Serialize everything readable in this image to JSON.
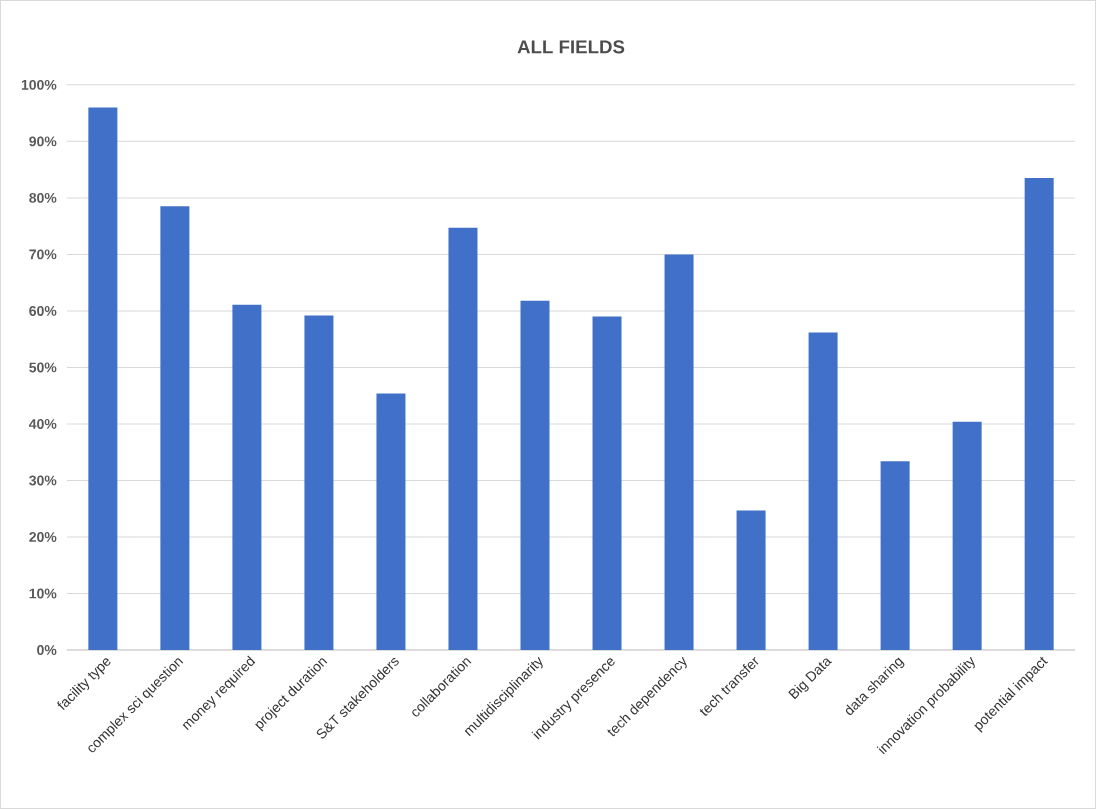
{
  "chart_data": {
    "type": "bar",
    "title": "ALL FIELDS",
    "categories": [
      "facility type",
      "complex sci question",
      "money required",
      "project duration",
      "S&T stakeholders",
      "collaboration",
      "multidisciplinarity",
      "industry presence",
      "tech dependency",
      "tech transfer",
      "Big Data",
      "data sharing",
      "innovation probability",
      "potential impact"
    ],
    "values": [
      96.0,
      78.5,
      61.1,
      59.2,
      45.4,
      74.7,
      61.8,
      59.0,
      70.0,
      24.7,
      56.2,
      33.4,
      40.4,
      83.5
    ],
    "color": "#4170c8",
    "ylim": [
      0,
      100
    ],
    "yticks": [
      {
        "value": 0,
        "label": "0%"
      },
      {
        "value": 10,
        "label": "10%"
      },
      {
        "value": 20,
        "label": "20%"
      },
      {
        "value": 30,
        "label": "30%"
      },
      {
        "value": 40,
        "label": "40%"
      },
      {
        "value": 50,
        "label": "50%"
      },
      {
        "value": 60,
        "label": "60%"
      },
      {
        "value": 70,
        "label": "70%"
      },
      {
        "value": 80,
        "label": "80%"
      },
      {
        "value": 90,
        "label": "90%"
      },
      {
        "value": 100,
        "label": "100%"
      }
    ],
    "grid": "y"
  }
}
